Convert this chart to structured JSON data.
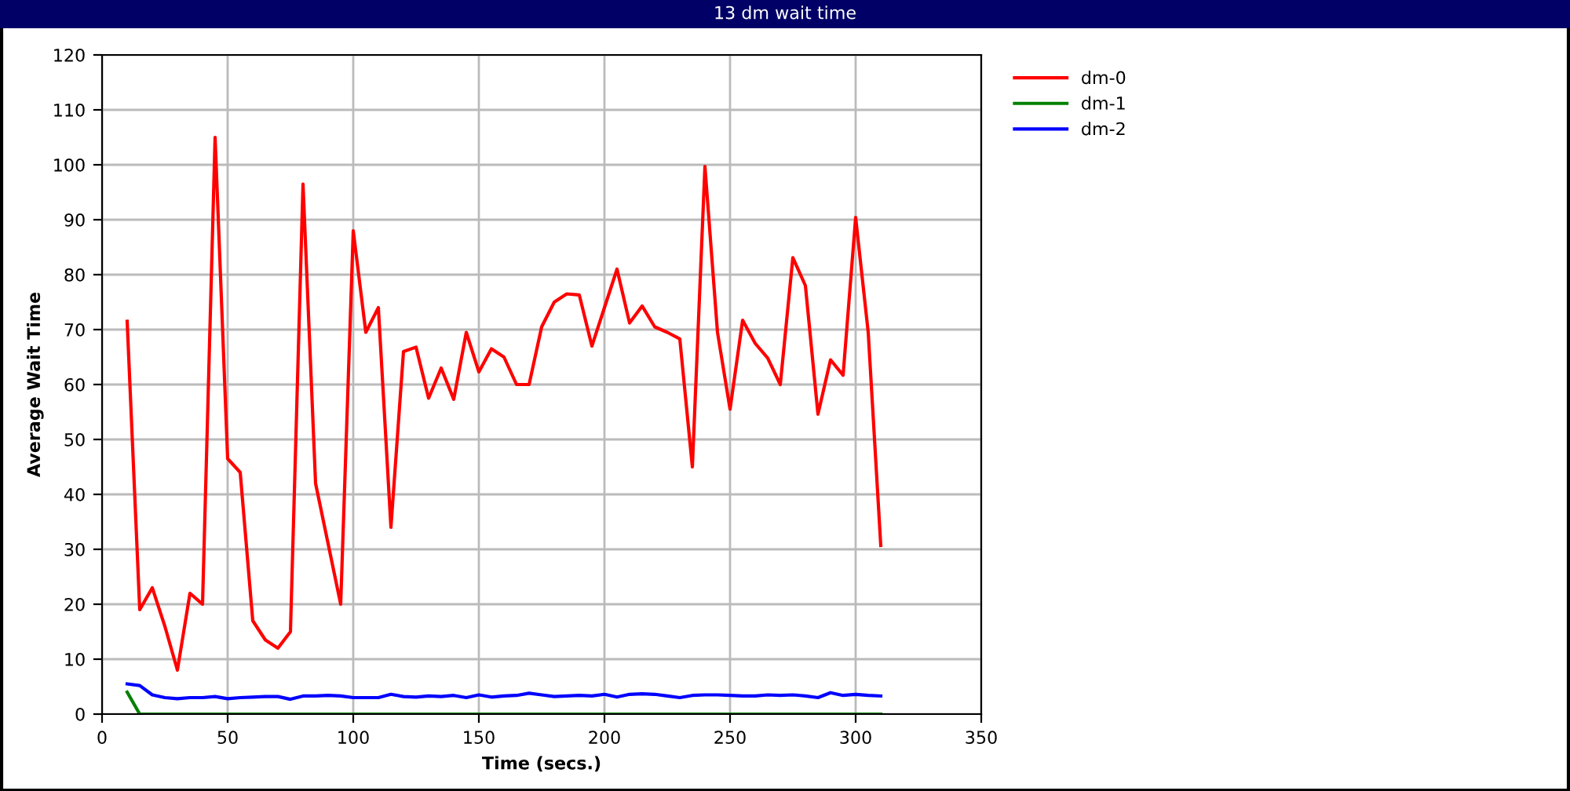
{
  "chart_data": {
    "type": "line",
    "title": "13 dm wait time",
    "xlabel": "Time (secs.)",
    "ylabel": "Average Wait Time",
    "x": [
      10,
      15,
      20,
      25,
      30,
      35,
      40,
      45,
      50,
      55,
      60,
      65,
      70,
      75,
      80,
      85,
      90,
      95,
      100,
      105,
      110,
      115,
      120,
      125,
      130,
      135,
      140,
      145,
      150,
      155,
      160,
      165,
      170,
      175,
      180,
      185,
      190,
      195,
      200,
      205,
      210,
      215,
      220,
      225,
      230,
      235,
      240,
      245,
      250,
      255,
      260,
      265,
      270,
      275,
      280,
      285,
      290,
      295,
      300,
      305,
      310
    ],
    "series": [
      {
        "name": "dm-0",
        "color": "#ff0000",
        "values": [
          71.5,
          19,
          23,
          16,
          8,
          22,
          20,
          105,
          46.5,
          44,
          17,
          13.5,
          12,
          15,
          96.5,
          42,
          31,
          20,
          88,
          69.5,
          74,
          34,
          66,
          66.8,
          57.5,
          63,
          57.3,
          69.5,
          62.3,
          66.5,
          65,
          60,
          60,
          70.5,
          75,
          76.5,
          76.3,
          67,
          74,
          81,
          71.2,
          74.3,
          70.5,
          69.5,
          68.3,
          45,
          99.7,
          69.5,
          55.5,
          71.7,
          67.5,
          64.8,
          60,
          83.1,
          78,
          54.6,
          64.5,
          61.7,
          90.4,
          69.5,
          30.7
        ]
      },
      {
        "name": "dm-1",
        "color": "#008000",
        "values": [
          4,
          0,
          0,
          0,
          0,
          0,
          0,
          0,
          0,
          0,
          0,
          0,
          0,
          0,
          0,
          0,
          0,
          0,
          0,
          0,
          0,
          0,
          0,
          0,
          0,
          0,
          0,
          0,
          0,
          0,
          0,
          0,
          0,
          0,
          0,
          0,
          0,
          0,
          0,
          0,
          0,
          0,
          0,
          0,
          0,
          0,
          0,
          0,
          0,
          0,
          0,
          0,
          0,
          0,
          0,
          0,
          0,
          0,
          0,
          0,
          0
        ]
      },
      {
        "name": "dm-2",
        "color": "#0000ff",
        "values": [
          5.5,
          5.2,
          3.5,
          3,
          2.8,
          3,
          3,
          3.2,
          2.8,
          3,
          3.1,
          3.2,
          3.2,
          2.7,
          3.3,
          3.3,
          3.4,
          3.3,
          3,
          3,
          3,
          3.6,
          3.2,
          3.1,
          3.3,
          3.2,
          3.4,
          3,
          3.5,
          3.1,
          3.3,
          3.4,
          3.8,
          3.5,
          3.2,
          3.3,
          3.4,
          3.3,
          3.6,
          3.1,
          3.6,
          3.7,
          3.6,
          3.3,
          3,
          3.4,
          3.5,
          3.5,
          3.4,
          3.3,
          3.3,
          3.5,
          3.4,
          3.5,
          3.3,
          3,
          3.9,
          3.4,
          3.6,
          3.4,
          3.3
        ]
      }
    ],
    "xlim": [
      0,
      350
    ],
    "xticks": [
      0,
      50,
      100,
      150,
      200,
      250,
      300,
      350
    ],
    "ylim": [
      0,
      120
    ],
    "yticks": [
      0,
      10,
      20,
      30,
      40,
      50,
      60,
      70,
      80,
      90,
      100,
      110,
      120
    ],
    "grid": true,
    "legend": "right",
    "marker": "none",
    "line_style": "solid"
  }
}
